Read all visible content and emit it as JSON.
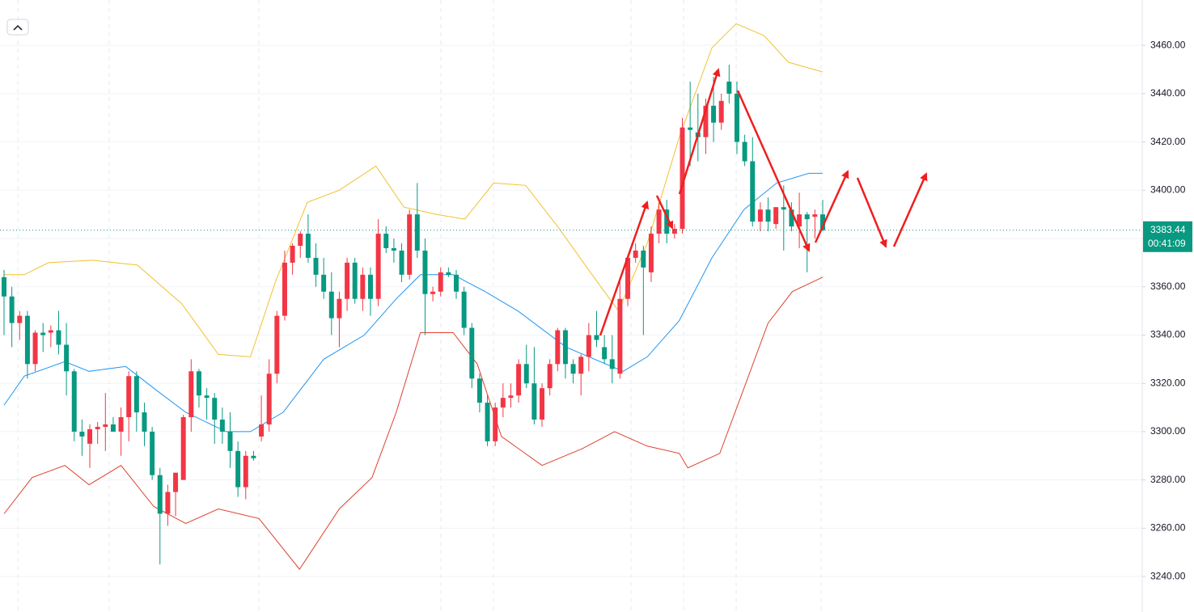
{
  "chart_data": {
    "type": "candlestick",
    "up_color": "#f23645",
    "down_color": "#089981",
    "ylim": [
      3225.3,
      3478.8
    ],
    "yticks": [
      {
        "value": 3240,
        "label": "3240.00"
      },
      {
        "value": 3260,
        "label": "3260.00"
      },
      {
        "value": 3280,
        "label": "3280.00"
      },
      {
        "value": 3300,
        "label": "3300.00"
      },
      {
        "value": 3320,
        "label": "3320.00"
      },
      {
        "value": 3340,
        "label": "3340.00"
      },
      {
        "value": 3360,
        "label": "3360.00"
      },
      {
        "value": 3380,
        "label": "3380.00"
      },
      {
        "value": 3400,
        "label": "3400.00"
      },
      {
        "value": 3420,
        "label": "3420.00"
      },
      {
        "value": 3440,
        "label": "3440.00"
      },
      {
        "value": 3460,
        "label": "3460.00"
      }
    ],
    "grid": true,
    "countdown": "00:41:09",
    "open": [
      3364,
      3356,
      3345,
      3348,
      3328,
      3341,
      3341,
      3342,
      3336,
      3325,
      3300,
      3295,
      3301,
      3302,
      3303,
      3300,
      3306,
      3323,
      3308,
      3300,
      3282,
      3266,
      3275,
      3280,
      3306,
      3325,
      3315,
      3314,
      3305,
      3300,
      3292,
      3277,
      3290,
      3298,
      3303,
      3324,
      3348,
      3370,
      3377,
      3382,
      3372,
      3365,
      3358,
      3347,
      3355,
      3370,
      3355,
      3365,
      3355,
      3382,
      3376,
      3375,
      3365,
      3390,
      3375,
      3357,
      3358,
      3366,
      3365,
      3358,
      3343,
      3322,
      3312,
      3296,
      3310,
      3314,
      3315,
      3328,
      3320,
      3305,
      3318,
      3328,
      3342,
      3328,
      3324,
      3331,
      3340,
      3335,
      3330,
      3324,
      3355,
      3372,
      3375,
      3366,
      3382,
      3392,
      3382,
      3384,
      3426,
      3424,
      3422,
      3435,
      3428,
      3445,
      3440,
      3420,
      3412,
      3387,
      3392,
      3386,
      3393,
      3392,
      3385,
      3390,
      3389,
      3390
    ],
    "high": [
      3367,
      3360,
      3350,
      3350,
      3342,
      3345,
      3344,
      3350,
      3345,
      3326,
      3305,
      3303,
      3304,
      3316,
      3306,
      3310,
      3325,
      3325,
      3312,
      3302,
      3285,
      3278,
      3283,
      3307,
      3330,
      3326,
      3318,
      3316,
      3310,
      3308,
      3296,
      3292,
      3292,
      3315,
      3330,
      3350,
      3375,
      3378,
      3383,
      3390,
      3378,
      3372,
      3366,
      3358,
      3372,
      3372,
      3368,
      3368,
      3388,
      3385,
      3380,
      3378,
      3392,
      3403,
      3380,
      3360,
      3368,
      3368,
      3367,
      3360,
      3345,
      3324,
      3315,
      3312,
      3320,
      3320,
      3330,
      3336,
      3335,
      3320,
      3330,
      3343,
      3343,
      3330,
      3332,
      3345,
      3350,
      3340,
      3340,
      3362,
      3373,
      3378,
      3377,
      3385,
      3395,
      3396,
      3386,
      3430,
      3445,
      3440,
      3438,
      3447,
      3440,
      3452,
      3445,
      3423,
      3422,
      3395,
      3397,
      3393,
      3402,
      3395,
      3399,
      3391,
      3392,
      3396
    ],
    "low": [
      3340,
      3335,
      3338,
      3322,
      3325,
      3333,
      3335,
      3332,
      3315,
      3296,
      3290,
      3285,
      3295,
      3292,
      3300,
      3290,
      3296,
      3300,
      3294,
      3280,
      3245,
      3261,
      3265,
      3280,
      3300,
      3310,
      3305,
      3295,
      3295,
      3285,
      3273,
      3272,
      3288,
      3296,
      3300,
      3320,
      3346,
      3365,
      3372,
      3370,
      3360,
      3355,
      3340,
      3335,
      3350,
      3353,
      3350,
      3348,
      3352,
      3374,
      3370,
      3362,
      3363,
      3372,
      3340,
      3354,
      3356,
      3364,
      3355,
      3340,
      3318,
      3308,
      3294,
      3294,
      3306,
      3310,
      3312,
      3318,
      3303,
      3302,
      3315,
      3325,
      3322,
      3320,
      3315,
      3325,
      3335,
      3328,
      3320,
      3322,
      3352,
      3370,
      3340,
      3362,
      3378,
      3378,
      3380,
      3382,
      3410,
      3412,
      3415,
      3420,
      3425,
      3436,
      3415,
      3410,
      3385,
      3383,
      3383,
      3384,
      3375,
      3383,
      3376,
      3366,
      3380,
      3383
    ],
    "close": [
      3356,
      3345,
      3348,
      3328,
      3341,
      3340,
      3342,
      3336,
      3325,
      3300,
      3298,
      3301,
      3302,
      3303,
      3300,
      3306,
      3323,
      3308,
      3300,
      3282,
      3266,
      3275,
      3283,
      3306,
      3325,
      3315,
      3314,
      3305,
      3300,
      3292,
      3277,
      3290,
      3289,
      3303,
      3324,
      3348,
      3370,
      3377,
      3382,
      3372,
      3365,
      3358,
      3347,
      3355,
      3370,
      3355,
      3365,
      3355,
      3382,
      3376,
      3375,
      3365,
      3390,
      3375,
      3357,
      3358,
      3366,
      3365,
      3358,
      3343,
      3322,
      3312,
      3296,
      3310,
      3314,
      3315,
      3328,
      3320,
      3305,
      3318,
      3328,
      3342,
      3328,
      3324,
      3331,
      3340,
      3338,
      3330,
      3326,
      3355,
      3372,
      3375,
      3368,
      3382,
      3392,
      3382,
      3384,
      3426,
      3425,
      3422,
      3435,
      3428,
      3437,
      3440,
      3420,
      3412,
      3387,
      3392,
      3387,
      3393,
      3392,
      3385,
      3390,
      3388,
      3390,
      3383.44
    ],
    "bands": [
      {
        "color": "#f2c12e",
        "x": [
          0,
          2.6,
          5.7,
          11.4,
          17.1,
          22.8,
          27.5,
          31.6,
          34.8,
          38.9,
          43,
          47.7,
          51.3,
          55.5,
          59.1,
          62.8,
          66.9,
          71,
          75.2,
          78.8,
          82.5,
          86.6,
          90.8,
          93.9,
          97.5,
          100.6,
          105
        ],
        "values": [
          3365,
          3365,
          3370,
          3371,
          3369,
          3353,
          3332,
          3331,
          3362,
          3395,
          3400,
          3410,
          3393,
          3390,
          3388,
          3403,
          3402,
          3385,
          3366,
          3350,
          3378,
          3422,
          3459,
          3469,
          3464,
          3453,
          3449
        ]
      },
      {
        "color": "#2196f3",
        "x": [
          0,
          2.6,
          7.8,
          10.9,
          15.6,
          19.2,
          23.3,
          28.5,
          31.6,
          35.8,
          41,
          46.2,
          50.3,
          53.4,
          57.6,
          61.7,
          65.9,
          72.1,
          79.4,
          82.5,
          86.6,
          90.8,
          94.9,
          99.1,
          103.2,
          105
        ],
        "values": [
          3311,
          3323,
          3329,
          3325,
          3327,
          3318,
          3308,
          3300,
          3300,
          3308,
          3330,
          3340,
          3355,
          3365,
          3365,
          3358,
          3350,
          3335,
          3325,
          3331,
          3346,
          3372,
          3392,
          3403,
          3407,
          3407
        ]
      },
      {
        "color": "#e0402f",
        "x": [
          0,
          3.6,
          7.8,
          10.9,
          15,
          19.2,
          23.3,
          27.5,
          32.7,
          37.9,
          43,
          47.2,
          50.3,
          53.4,
          57.6,
          60.7,
          63.8,
          69,
          74.2,
          78.3,
          82.5,
          86.6,
          87.7,
          91.8,
          94.9,
          98,
          101.1,
          105
        ],
        "values": [
          3266,
          3281,
          3286,
          3278,
          3286,
          3269,
          3262,
          3268,
          3264,
          3243,
          3268,
          3281,
          3308,
          3341,
          3341,
          3328,
          3298,
          3286,
          3293,
          3300,
          3294,
          3291,
          3285,
          3291,
          3318,
          3345,
          3358,
          3364
        ]
      }
    ]
  }
}
